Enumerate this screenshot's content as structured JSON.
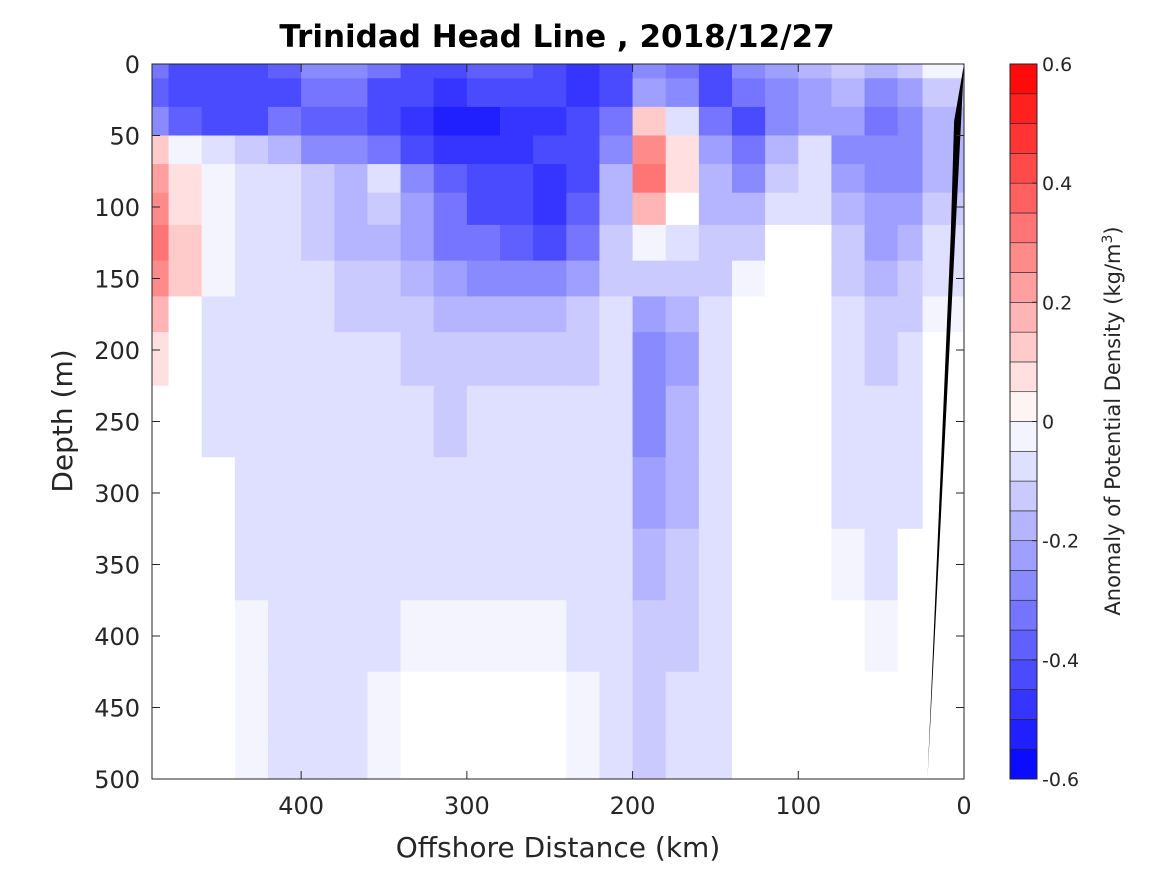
{
  "chart_data": {
    "type": "heatmap",
    "title": "Trinidad Head Line , 2018/12/27",
    "xlabel": "Offshore Distance (km)",
    "ylabel": "Depth (m)",
    "colorbar_label_prefix": "Anomaly of Potential Density (kg/m",
    "colorbar_label_sup": "3",
    "colorbar_label_suffix": ")",
    "xlim": [
      490,
      0
    ],
    "x_reversed": true,
    "ylim": [
      0,
      500
    ],
    "y_reversed": true,
    "xticks": [
      400,
      300,
      200,
      100,
      0
    ],
    "yticks": [
      0,
      50,
      100,
      150,
      200,
      250,
      300,
      350,
      400,
      450,
      500
    ],
    "clim": [
      -0.6,
      0.6
    ],
    "colorbar_ticks": [
      0.6,
      0.4,
      0.2,
      0,
      -0.2,
      -0.4,
      -0.6
    ],
    "colorbar_tick_labels": [
      "0.6",
      "0.4",
      "0.2",
      "0",
      "-0.2",
      "-0.4",
      "-0.6"
    ],
    "colorbar_levels": 24,
    "colormap": {
      "negative": "#0000ff",
      "zero": "#ffffff",
      "positive": "#ff0000"
    },
    "bathymetry_color": "#000000",
    "grid": false,
    "field": {
      "x": [
        490,
        470,
        450,
        430,
        410,
        390,
        370,
        350,
        330,
        310,
        290,
        270,
        250,
        230,
        210,
        190,
        170,
        150,
        130,
        110,
        90,
        70,
        50,
        30,
        20
      ],
      "depth": [
        0,
        20,
        40,
        60,
        80,
        100,
        125,
        150,
        175,
        200,
        250,
        300,
        350,
        400,
        450,
        500
      ],
      "values": [
        [
          -0.35,
          -0.4,
          -0.4,
          -0.42,
          -0.38,
          -0.3,
          -0.3,
          -0.35,
          -0.4,
          -0.4,
          -0.38,
          -0.38,
          -0.42,
          -0.48,
          -0.42,
          -0.3,
          -0.35,
          -0.4,
          -0.3,
          -0.25,
          -0.18,
          -0.12,
          -0.2,
          -0.15,
          -0.05
        ],
        [
          -0.38,
          -0.42,
          -0.42,
          -0.4,
          -0.4,
          -0.35,
          -0.35,
          -0.4,
          -0.42,
          -0.45,
          -0.42,
          -0.42,
          -0.42,
          -0.45,
          -0.4,
          -0.25,
          -0.3,
          -0.4,
          -0.35,
          -0.3,
          -0.22,
          -0.18,
          -0.3,
          -0.22,
          -0.12
        ],
        [
          -0.3,
          -0.38,
          -0.4,
          -0.4,
          -0.35,
          -0.38,
          -0.38,
          -0.4,
          -0.45,
          -0.5,
          -0.5,
          -0.48,
          -0.45,
          -0.42,
          -0.35,
          0.1,
          -0.1,
          -0.35,
          -0.4,
          -0.3,
          -0.25,
          -0.22,
          -0.35,
          -0.3,
          -0.2
        ],
        [
          0.1,
          -0.05,
          -0.1,
          -0.15,
          -0.2,
          -0.3,
          -0.3,
          -0.35,
          -0.4,
          -0.45,
          -0.48,
          -0.45,
          -0.42,
          -0.4,
          -0.3,
          0.25,
          0.05,
          -0.25,
          -0.35,
          -0.2,
          -0.1,
          -0.3,
          -0.3,
          -0.3,
          -0.2
        ],
        [
          0.2,
          0.05,
          -0.05,
          -0.08,
          -0.1,
          -0.12,
          -0.18,
          -0.08,
          -0.3,
          -0.38,
          -0.4,
          -0.42,
          -0.45,
          -0.4,
          -0.2,
          0.32,
          0.05,
          -0.2,
          -0.3,
          -0.12,
          -0.08,
          -0.25,
          -0.28,
          -0.28,
          -0.18
        ],
        [
          0.25,
          0.08,
          -0.05,
          -0.08,
          -0.1,
          -0.12,
          -0.2,
          -0.15,
          -0.25,
          -0.35,
          -0.4,
          -0.42,
          -0.48,
          -0.38,
          -0.18,
          0.18,
          0.03,
          -0.2,
          -0.2,
          -0.08,
          -0.06,
          -0.18,
          -0.25,
          -0.25,
          -0.15
        ],
        [
          0.3,
          0.12,
          -0.05,
          -0.08,
          -0.1,
          -0.12,
          -0.18,
          -0.18,
          -0.25,
          -0.32,
          -0.35,
          -0.38,
          -0.42,
          -0.35,
          -0.15,
          -0.05,
          -0.1,
          -0.15,
          -0.12,
          0.02,
          0.03,
          -0.15,
          -0.22,
          -0.2,
          -0.1
        ],
        [
          0.25,
          0.1,
          -0.05,
          -0.08,
          -0.1,
          -0.1,
          -0.15,
          -0.12,
          -0.18,
          -0.25,
          -0.3,
          -0.3,
          -0.28,
          -0.22,
          -0.12,
          -0.12,
          -0.15,
          -0.12,
          -0.05,
          0.0,
          -0.02,
          -0.12,
          -0.18,
          -0.15,
          -0.08
        ],
        [
          0.15,
          0.0,
          -0.08,
          -0.08,
          -0.1,
          -0.1,
          -0.12,
          -0.12,
          -0.15,
          -0.18,
          -0.2,
          -0.2,
          -0.18,
          -0.15,
          -0.1,
          -0.22,
          -0.2,
          -0.1,
          -0.03,
          0.02,
          -0.02,
          -0.1,
          -0.15,
          -0.12,
          -0.05
        ],
        [
          0.08,
          -0.02,
          -0.08,
          -0.08,
          -0.08,
          -0.08,
          -0.1,
          -0.1,
          -0.12,
          -0.15,
          -0.15,
          -0.12,
          -0.12,
          -0.12,
          -0.1,
          -0.28,
          -0.22,
          -0.1,
          -0.02,
          -0.02,
          -0.02,
          -0.08,
          -0.12,
          -0.1,
          -0.04
        ],
        [
          0.02,
          -0.02,
          -0.06,
          -0.08,
          -0.08,
          -0.08,
          -0.08,
          -0.08,
          -0.1,
          -0.12,
          -0.1,
          -0.08,
          -0.08,
          -0.1,
          -0.1,
          -0.3,
          -0.2,
          -0.1,
          -0.02,
          -0.02,
          -0.02,
          -0.06,
          -0.1,
          -0.08,
          -0.03
        ],
        [
          0.02,
          -0.02,
          -0.04,
          -0.06,
          -0.08,
          -0.08,
          -0.08,
          -0.08,
          -0.08,
          -0.08,
          -0.08,
          -0.08,
          -0.08,
          -0.08,
          -0.1,
          -0.22,
          -0.18,
          -0.1,
          -0.02,
          -0.02,
          -0.02,
          -0.06,
          -0.08,
          -0.06,
          -0.02
        ],
        [
          0.02,
          -0.02,
          -0.04,
          -0.06,
          -0.08,
          -0.06,
          -0.06,
          -0.06,
          -0.06,
          -0.06,
          -0.06,
          -0.06,
          -0.06,
          -0.06,
          -0.1,
          -0.18,
          -0.15,
          -0.1,
          -0.02,
          -0.02,
          -0.02,
          -0.05,
          -0.06,
          -0.04,
          -0.02
        ],
        [
          0.02,
          -0.02,
          -0.04,
          -0.05,
          -0.06,
          -0.06,
          -0.06,
          -0.06,
          -0.05,
          -0.05,
          -0.05,
          -0.05,
          -0.05,
          -0.06,
          -0.1,
          -0.15,
          -0.12,
          -0.08,
          -0.02,
          -0.02,
          -0.02,
          -0.04,
          -0.05,
          -0.03,
          0.02
        ],
        [
          0.0,
          -0.02,
          -0.04,
          -0.05,
          -0.06,
          -0.06,
          -0.06,
          -0.05,
          -0.04,
          -0.02,
          0.02,
          0.02,
          -0.02,
          -0.05,
          -0.1,
          -0.12,
          -0.1,
          -0.08,
          -0.02,
          -0.02,
          -0.02,
          -0.03,
          -0.04,
          -0.02,
          0.02
        ],
        [
          0.0,
          -0.02,
          -0.04,
          -0.05,
          -0.06,
          -0.06,
          -0.06,
          -0.05,
          -0.03,
          -0.02,
          0.02,
          0.02,
          -0.02,
          -0.05,
          -0.1,
          -0.12,
          -0.1,
          -0.08,
          -0.02,
          -0.02,
          -0.02,
          -0.03,
          -0.04,
          -0.02,
          0.02
        ]
      ]
    },
    "bathymetry": {
      "x": [
        0,
        22,
        22,
        8,
        6,
        0
      ],
      "depth": [
        0,
        500,
        500,
        120,
        40,
        0
      ]
    }
  }
}
